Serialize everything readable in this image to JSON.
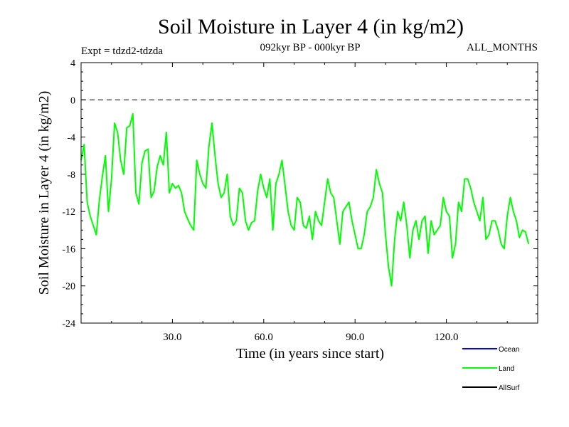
{
  "colors": {
    "background": "#ffffff",
    "axis": "#000000",
    "land": "#00ff00",
    "ocean": "#0000ff",
    "allsurf": "#000000"
  },
  "chart_data": {
    "type": "line",
    "title": "Soil Moisture in Layer 4 (in kg/m2)",
    "subtitle_left": "Expt = tdzd2-tdzda",
    "subtitle_center": "092kyr BP - 000kyr BP",
    "subtitle_right": "ALL_MONTHS",
    "xlabel": "Time (in years since start)",
    "ylabel": "Soil Moisture in Layer 4 (in kg/m2)",
    "xlim": [
      0,
      150
    ],
    "ylim": [
      -24,
      4
    ],
    "x_ticks": [
      {
        "value": 30,
        "label": "30.0"
      },
      {
        "value": 60,
        "label": "60.0"
      },
      {
        "value": 90,
        "label": "90.0"
      },
      {
        "value": 120,
        "label": "120.0"
      }
    ],
    "y_ticks": [
      {
        "value": 4,
        "label": "4"
      },
      {
        "value": 0,
        "label": "0"
      },
      {
        "value": -4,
        "label": "-4"
      },
      {
        "value": -8,
        "label": "-8"
      },
      {
        "value": -12,
        "label": "-12"
      },
      {
        "value": -16,
        "label": "-16"
      },
      {
        "value": -20,
        "label": "-20"
      },
      {
        "value": -24,
        "label": "-24"
      }
    ],
    "reference_line": {
      "y": 0,
      "style": "dashed"
    },
    "legend": [
      {
        "name": "Ocean",
        "color": "#0000ff"
      },
      {
        "name": "Land",
        "color": "#00ff00"
      },
      {
        "name": "AllSurf",
        "color": "#000000"
      }
    ],
    "series": [
      {
        "name": "Land",
        "color": "#00ff00",
        "step": 1,
        "start_x": 0,
        "values": [
          -6.5,
          -4.8,
          -11.0,
          -12.5,
          -13.5,
          -14.5,
          -10.8,
          -8.2,
          -6.0,
          -12.0,
          -8.5,
          -2.5,
          -3.5,
          -6.5,
          -8.0,
          -3.0,
          -2.8,
          -1.5,
          -10.0,
          -11.2,
          -6.8,
          -5.5,
          -5.3,
          -10.5,
          -9.8,
          -7.2,
          -6.0,
          -7.0,
          -3.5,
          -10.0,
          -9.0,
          -9.5,
          -9.2,
          -10.0,
          -12.0,
          -12.8,
          -13.5,
          -14.0,
          -6.5,
          -8.0,
          -9.0,
          -9.5,
          -5.0,
          -2.5,
          -6.0,
          -9.0,
          -10.5,
          -10.0,
          -8.0,
          -12.5,
          -13.5,
          -13.0,
          -9.5,
          -10.0,
          -13.0,
          -14.0,
          -13.2,
          -13.0,
          -9.8,
          -8.0,
          -9.5,
          -10.5,
          -8.5,
          -14.0,
          -9.0,
          -8.0,
          -6.5,
          -9.2,
          -12.0,
          -13.5,
          -14.0,
          -10.5,
          -11.0,
          -13.5,
          -13.8,
          -12.5,
          -15.0,
          -12.0,
          -13.0,
          -13.5,
          -11.0,
          -8.5,
          -10.0,
          -10.5,
          -13.0,
          -15.5,
          -12.0,
          -11.5,
          -11.0,
          -13.0,
          -14.5,
          -16.0,
          -16.0,
          -14.5,
          -12.0,
          -11.5,
          -10.5,
          -7.5,
          -9.0,
          -10.0,
          -14.5,
          -18.0,
          -20.0,
          -15.0,
          -12.0,
          -13.0,
          -11.0,
          -13.5,
          -17.0,
          -14.0,
          -13.0,
          -15.0,
          -13.0,
          -12.5,
          -16.5,
          -13.0,
          -14.5,
          -14.0,
          -13.5,
          -10.5,
          -12.0,
          -12.5,
          -17.0,
          -15.5,
          -11.0,
          -12.0,
          -8.5,
          -8.5,
          -9.5,
          -11.0,
          -12.0,
          -13.0,
          -10.5,
          -15.0,
          -14.5,
          -13.0,
          -13.0,
          -14.0,
          -15.5,
          -16.0,
          -12.5,
          -10.5,
          -12.0,
          -13.0,
          -14.8,
          -14.0,
          -14.2,
          -15.5
        ]
      }
    ]
  }
}
